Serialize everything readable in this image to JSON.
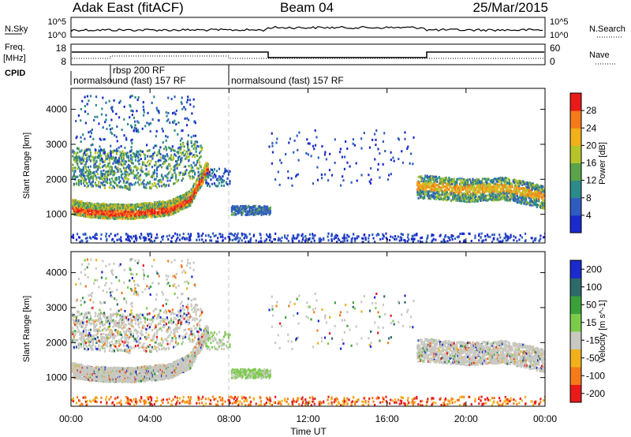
{
  "header": {
    "title_left": "Adak East (fitACF)",
    "title_center": "Beam 04",
    "title_right": "25/Mar/2015"
  },
  "noise_panel": {
    "left_label": "N.Sky",
    "left_ticks": [
      "10^5",
      "10^0"
    ],
    "right_label": "N.Search",
    "right_ticks": [
      "10^5",
      "10^0"
    ]
  },
  "freq_panel": {
    "left_label_1": "Freq.",
    "left_label_2": "[MHz]",
    "left_ticks": [
      "18",
      "8"
    ],
    "right_label": "Nave",
    "right_ticks": [
      "60",
      "0"
    ]
  },
  "cpid": {
    "label": "CPID",
    "segments": [
      {
        "start": 0.0,
        "label": "normalsound (fast) 157 RF"
      },
      {
        "start": 1.5,
        "label": "rbsp 200 RF"
      },
      {
        "start": 8.0,
        "label": "normalsound (fast) 157 RF"
      }
    ]
  },
  "chart_data": [
    {
      "type": "heatmap",
      "name": "power",
      "ylabel": "Slant Range [km]",
      "xlim": [
        0,
        24
      ],
      "ylim": [
        180,
        4600
      ],
      "yticks": [
        1000,
        2000,
        3000,
        4000
      ],
      "colorbar": {
        "label": "Power [dB]",
        "ticks": [
          "4",
          "8",
          "12",
          "16",
          "20",
          "24",
          "28"
        ],
        "colors": [
          "#1a2acc",
          "#2e5bbf",
          "#2c8a8a",
          "#5aa34a",
          "#b5c42a",
          "#f2b01a",
          "#f57a1a",
          "#e81a1a"
        ]
      },
      "features": [
        {
          "desc": "strong band",
          "t": [
            0.0,
            1.0,
            2.0,
            3.0,
            4.0,
            5.0,
            6.0,
            6.8
          ],
          "range": [
            1150,
            1050,
            1020,
            1010,
            1060,
            1120,
            1400,
            2200
          ],
          "level": "28"
        },
        {
          "desc": "upper scatter",
          "t": [
            0.2,
            1.5,
            3.0,
            4.5,
            6.0
          ],
          "range": [
            2300,
            2250,
            2200,
            2250,
            2500
          ],
          "level": "12"
        },
        {
          "desc": "patch",
          "t": [
            8.0,
            10.0
          ],
          "range": [
            1100,
            1100
          ],
          "level": "8"
        },
        {
          "desc": "evening band",
          "t": [
            18.0,
            20.0,
            22.0,
            24.0
          ],
          "range": [
            1800,
            1700,
            1750,
            1500
          ],
          "level": "20"
        }
      ]
    },
    {
      "type": "heatmap",
      "name": "velocity",
      "ylabel": "Slant Range [km]",
      "xlabel": "Time UT",
      "xlim": [
        0,
        24
      ],
      "ylim": [
        180,
        4600
      ],
      "yticks": [
        1000,
        2000,
        3000,
        4000
      ],
      "xticks": [
        "00:00",
        "04:00",
        "08:00",
        "12:00",
        "16:00",
        "20:00",
        "00:00"
      ],
      "colorbar": {
        "label": "Velocity [m s^-1]",
        "ticks": [
          "200",
          "100",
          "50",
          "15",
          "-15",
          "-50",
          "-100",
          "-200"
        ],
        "colors": [
          "#1a2acc",
          "#2c6a6a",
          "#3aa03a",
          "#7acb4a",
          "#c8c8c0",
          "#f2b01a",
          "#f57a1a",
          "#e81a1a"
        ]
      }
    }
  ]
}
